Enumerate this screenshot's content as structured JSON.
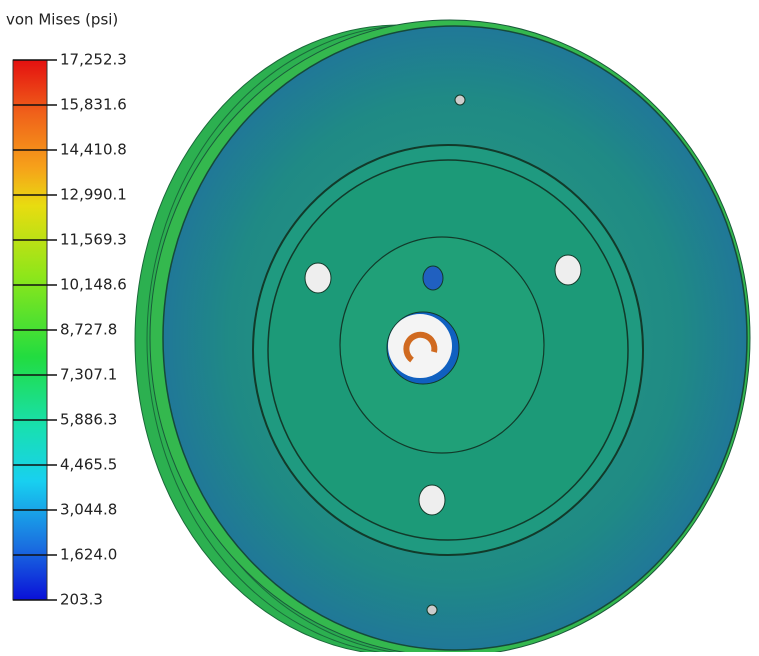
{
  "legend": {
    "title": "von Mises (psi)",
    "labels": [
      "17,252.3",
      "15,831.6",
      "14,410.8",
      "12,990.1",
      "11,569.3",
      "10,148.6",
      "8,727.8",
      "7,307.1",
      "5,886.3",
      "4,465.5",
      "3,044.8",
      "1,624.0",
      "203.3"
    ]
  }
}
